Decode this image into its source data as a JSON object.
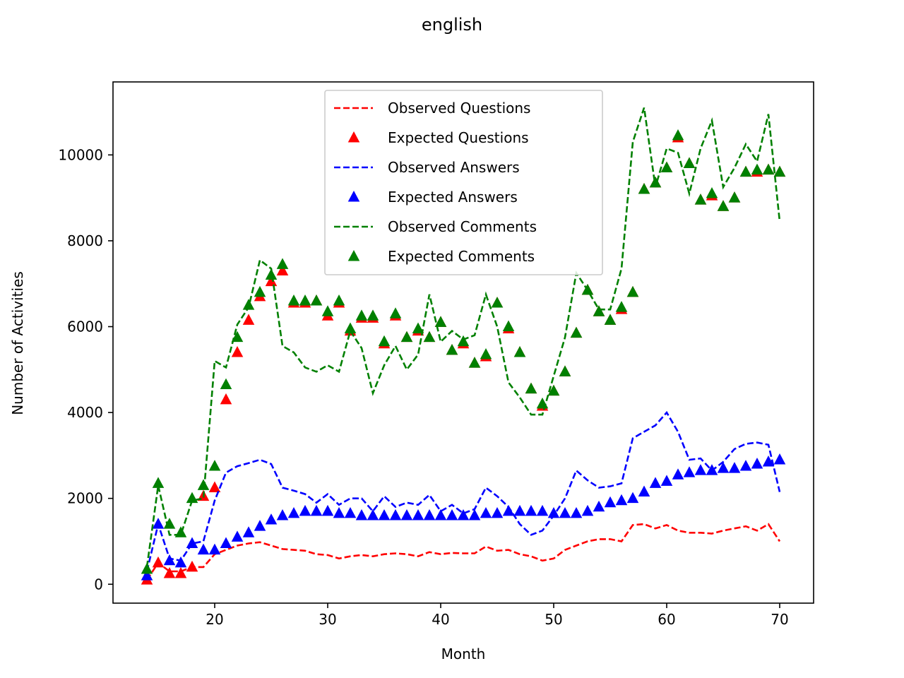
{
  "chart_data": {
    "type": "line",
    "title": "english",
    "xlabel": "Month",
    "ylabel": "Number of Activities",
    "xlim": [
      11,
      73
    ],
    "ylim": [
      -440,
      11700
    ],
    "xticks": [
      20,
      30,
      40,
      50,
      60,
      70
    ],
    "yticks": [
      0,
      2000,
      4000,
      6000,
      8000,
      10000
    ],
    "grid": false,
    "legend_position": "upper center",
    "x": [
      14,
      15,
      16,
      17,
      18,
      19,
      20,
      21,
      22,
      23,
      24,
      25,
      26,
      27,
      28,
      29,
      30,
      31,
      32,
      33,
      34,
      35,
      36,
      37,
      38,
      39,
      40,
      41,
      42,
      43,
      44,
      45,
      46,
      47,
      48,
      49,
      50,
      51,
      52,
      53,
      54,
      55,
      56,
      57,
      58,
      59,
      60,
      61,
      62,
      63,
      64,
      65,
      66,
      67,
      68,
      69,
      70
    ],
    "series": [
      {
        "name": "Observed Questions",
        "style": "dashed",
        "color": "#ff0000",
        "values": [
          100,
          500,
          300,
          300,
          400,
          400,
          700,
          800,
          900,
          950,
          980,
          900,
          820,
          800,
          780,
          700,
          680,
          600,
          650,
          680,
          650,
          700,
          720,
          700,
          650,
          750,
          700,
          730,
          720,
          720,
          880,
          780,
          800,
          700,
          650,
          550,
          600,
          800,
          900,
          1000,
          1050,
          1050,
          1000,
          1380,
          1400,
          1300,
          1380,
          1250,
          1200,
          1200,
          1180,
          1250,
          1300,
          1350,
          1250,
          1400,
          1000
        ]
      },
      {
        "name": "Expected Questions",
        "style": "triangle",
        "color": "#ff0000",
        "values": [
          100,
          500,
          250,
          250,
          400,
          2050,
          2250,
          4300,
          5400,
          6150,
          6700,
          7050,
          7300,
          6550,
          6550,
          6600,
          6250,
          6550,
          5900,
          6200,
          6200,
          5600,
          6250,
          5750,
          5900,
          5750,
          6100,
          5450,
          5600,
          5150,
          5300,
          6550,
          5950,
          5400,
          4550,
          4150,
          4500,
          4950,
          5850,
          6850,
          6350,
          6150,
          6400,
          6800,
          9200,
          9350,
          9700,
          10400,
          9800,
          8950,
          9050,
          8800,
          9000,
          9600,
          9600,
          9650,
          9600
        ]
      },
      {
        "name": "Observed Answers",
        "style": "dashed",
        "color": "#0000ff",
        "values": [
          300,
          1400,
          600,
          550,
          950,
          1000,
          1950,
          2600,
          2750,
          2820,
          2900,
          2800,
          2250,
          2180,
          2100,
          1900,
          2100,
          1850,
          2000,
          2000,
          1700,
          2050,
          1800,
          1900,
          1850,
          2080,
          1700,
          1850,
          1650,
          1750,
          2250,
          2050,
          1800,
          1400,
          1150,
          1250,
          1600,
          2000,
          2650,
          2420,
          2250,
          2280,
          2350,
          3400,
          3550,
          3700,
          4000,
          3550,
          2900,
          2930,
          2650,
          2850,
          3150,
          3270,
          3300,
          3250,
          2150
        ]
      },
      {
        "name": "Expected Answers",
        "style": "triangle",
        "color": "#0000ff",
        "values": [
          200,
          1400,
          550,
          500,
          950,
          800,
          800,
          950,
          1100,
          1200,
          1350,
          1500,
          1600,
          1650,
          1700,
          1700,
          1700,
          1650,
          1650,
          1600,
          1600,
          1600,
          1600,
          1600,
          1600,
          1600,
          1600,
          1600,
          1600,
          1600,
          1650,
          1650,
          1700,
          1700,
          1700,
          1700,
          1650,
          1650,
          1650,
          1700,
          1800,
          1900,
          1950,
          2000,
          2150,
          2350,
          2400,
          2550,
          2600,
          2650,
          2650,
          2700,
          2700,
          2750,
          2800,
          2850,
          2900
        ]
      },
      {
        "name": "Observed Comments",
        "style": "dashed",
        "color": "#008000",
        "values": [
          400,
          2300,
          1150,
          1150,
          1950,
          2000,
          5200,
          5050,
          6050,
          6450,
          7550,
          7350,
          5550,
          5400,
          5050,
          4950,
          5100,
          4950,
          5900,
          5500,
          4450,
          5100,
          5550,
          5000,
          5350,
          6750,
          5650,
          5900,
          5700,
          5800,
          6750,
          6000,
          4700,
          4350,
          3950,
          3950,
          4850,
          5750,
          7250,
          6850,
          6400,
          6400,
          7350,
          10300,
          11100,
          9250,
          10150,
          10050,
          9100,
          10150,
          10800,
          9250,
          9700,
          10250,
          9850,
          10950,
          8450
        ]
      },
      {
        "name": "Expected Comments",
        "style": "triangle",
        "color": "#008000",
        "values": [
          350,
          2350,
          1400,
          1200,
          2000,
          2300,
          2750,
          4650,
          5750,
          6500,
          6800,
          7200,
          7450,
          6600,
          6600,
          6600,
          6350,
          6600,
          5950,
          6250,
          6250,
          5650,
          6300,
          5750,
          5950,
          5750,
          6100,
          5450,
          5650,
          5150,
          5350,
          6550,
          6000,
          5400,
          4550,
          4200,
          4500,
          4950,
          5850,
          6850,
          6350,
          6150,
          6450,
          6800,
          9200,
          9350,
          9700,
          10450,
          9800,
          8950,
          9100,
          8800,
          9000,
          9600,
          9650,
          9650,
          9600
        ]
      }
    ]
  }
}
